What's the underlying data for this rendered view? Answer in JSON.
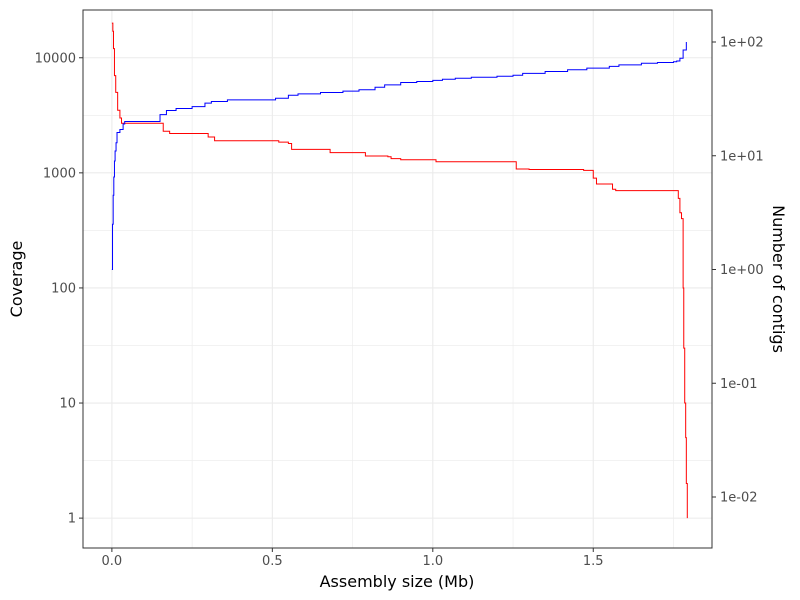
{
  "chart_data": {
    "type": "line",
    "xlabel": "Assembly size (Mb)",
    "ylabel_left": "Coverage",
    "ylabel_right": "Number of contigs",
    "x_ticks": [
      0.0,
      0.5,
      1.0,
      1.5
    ],
    "x_tick_labels": [
      "0.0",
      "0.5",
      "1.0",
      "1.5"
    ],
    "xlim": [
      -0.09,
      1.87
    ],
    "y_left_scale": "log10",
    "y_left_ticks": [
      1,
      10,
      100,
      1000,
      10000
    ],
    "y_left_tick_labels": [
      "1",
      "10",
      "100",
      "1000",
      "10000"
    ],
    "ylim_left": [
      0.55,
      26000
    ],
    "y_right_scale": "log10",
    "y_right_ticks": [
      0.01,
      0.1,
      1,
      10,
      100
    ],
    "y_right_tick_labels": [
      "1e-02",
      "1e-01",
      "1e+00",
      "1e+01",
      "1e+02"
    ],
    "grid": true,
    "series": [
      {
        "axis": "left",
        "color": "#ff0000",
        "points": [
          [
            0.0,
            20000
          ],
          [
            0.003,
            17000
          ],
          [
            0.005,
            12000
          ],
          [
            0.008,
            7000
          ],
          [
            0.012,
            5000
          ],
          [
            0.018,
            3500
          ],
          [
            0.025,
            3000
          ],
          [
            0.03,
            2700
          ],
          [
            0.15,
            2700
          ],
          [
            0.16,
            2300
          ],
          [
            0.18,
            2200
          ],
          [
            0.29,
            2200
          ],
          [
            0.3,
            2050
          ],
          [
            0.32,
            1900
          ],
          [
            0.5,
            1900
          ],
          [
            0.52,
            1850
          ],
          [
            0.55,
            1800
          ],
          [
            0.56,
            1600
          ],
          [
            0.67,
            1600
          ],
          [
            0.68,
            1500
          ],
          [
            0.78,
            1500
          ],
          [
            0.79,
            1400
          ],
          [
            0.86,
            1380
          ],
          [
            0.87,
            1330
          ],
          [
            0.9,
            1300
          ],
          [
            1.0,
            1300
          ],
          [
            1.01,
            1250
          ],
          [
            1.25,
            1250
          ],
          [
            1.26,
            1080
          ],
          [
            1.3,
            1070
          ],
          [
            1.45,
            1070
          ],
          [
            1.47,
            1050
          ],
          [
            1.5,
            900
          ],
          [
            1.51,
            800
          ],
          [
            1.55,
            800
          ],
          [
            1.56,
            720
          ],
          [
            1.57,
            700
          ],
          [
            1.76,
            700
          ],
          [
            1.765,
            600
          ],
          [
            1.77,
            450
          ],
          [
            1.775,
            400
          ],
          [
            1.78,
            100
          ],
          [
            1.782,
            30
          ],
          [
            1.785,
            10
          ],
          [
            1.788,
            5
          ],
          [
            1.79,
            2
          ],
          [
            1.793,
            1
          ]
        ]
      },
      {
        "axis": "right",
        "color": "#0000ff",
        "points": [
          [
            0.0,
            1.0
          ],
          [
            0.002,
            2.5
          ],
          [
            0.004,
            4.5
          ],
          [
            0.006,
            6.5
          ],
          [
            0.008,
            9
          ],
          [
            0.01,
            11
          ],
          [
            0.013,
            13
          ],
          [
            0.016,
            16
          ],
          [
            0.025,
            17
          ],
          [
            0.035,
            19
          ],
          [
            0.04,
            20
          ],
          [
            0.14,
            20
          ],
          [
            0.15,
            23
          ],
          [
            0.17,
            25
          ],
          [
            0.2,
            26
          ],
          [
            0.25,
            27
          ],
          [
            0.29,
            29
          ],
          [
            0.31,
            30
          ],
          [
            0.36,
            31
          ],
          [
            0.5,
            31
          ],
          [
            0.51,
            32
          ],
          [
            0.55,
            34
          ],
          [
            0.58,
            35
          ],
          [
            0.65,
            36
          ],
          [
            0.72,
            37
          ],
          [
            0.77,
            38
          ],
          [
            0.82,
            40
          ],
          [
            0.85,
            42
          ],
          [
            0.9,
            44
          ],
          [
            0.95,
            45
          ],
          [
            1.0,
            46
          ],
          [
            1.03,
            47
          ],
          [
            1.07,
            48
          ],
          [
            1.12,
            49
          ],
          [
            1.2,
            50
          ],
          [
            1.25,
            51
          ],
          [
            1.28,
            53
          ],
          [
            1.35,
            55
          ],
          [
            1.42,
            57
          ],
          [
            1.48,
            59
          ],
          [
            1.55,
            61
          ],
          [
            1.58,
            63
          ],
          [
            1.65,
            65
          ],
          [
            1.7,
            66
          ],
          [
            1.75,
            67
          ],
          [
            1.76,
            68
          ],
          [
            1.77,
            72
          ],
          [
            1.78,
            85
          ],
          [
            1.79,
            100
          ]
        ]
      }
    ]
  }
}
